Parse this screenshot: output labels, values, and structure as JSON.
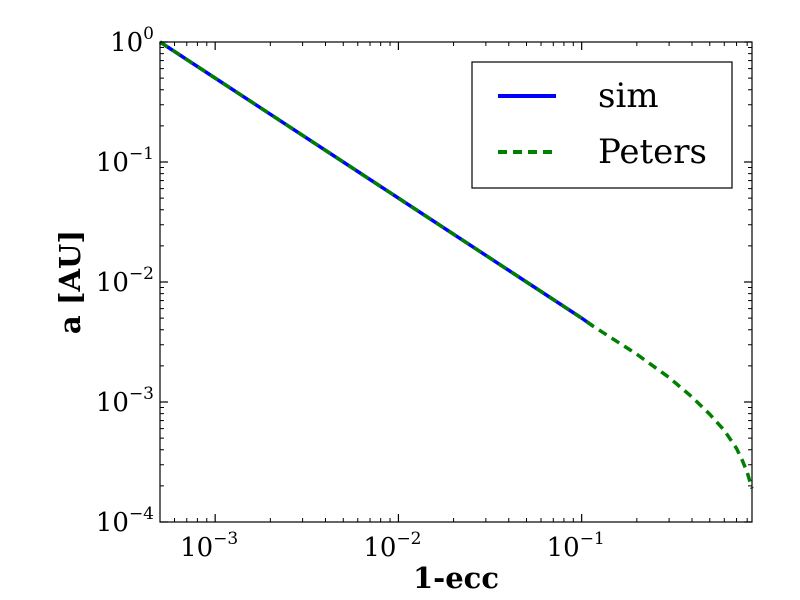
{
  "chart_data": {
    "type": "line",
    "xlabel": "1-ecc",
    "ylabel": "a [AU]",
    "xscale": "log",
    "yscale": "log",
    "xlim": [
      0.0005,
      0.85
    ],
    "ylim": [
      0.0001,
      1
    ],
    "xticks": [
      {
        "value": 0.001,
        "base": "10",
        "exp": "−3"
      },
      {
        "value": 0.01,
        "base": "10",
        "exp": "−2"
      },
      {
        "value": 0.1,
        "base": "10",
        "exp": "−1"
      }
    ],
    "yticks": [
      {
        "value": 0.0001,
        "base": "10",
        "exp": "−4"
      },
      {
        "value": 0.001,
        "base": "10",
        "exp": "−3"
      },
      {
        "value": 0.01,
        "base": "10",
        "exp": "−2"
      },
      {
        "value": 0.1,
        "base": "10",
        "exp": "−1"
      },
      {
        "value": 1,
        "base": "10",
        "exp": "0"
      }
    ],
    "grid": false,
    "legend_position": "top-right",
    "series": [
      {
        "name": "sim",
        "color": "#0000ff",
        "style": "solid",
        "x": [
          0.0005,
          0.001,
          0.005,
          0.01,
          0.05,
          0.1,
          0.115
        ],
        "y": [
          1.0,
          0.5,
          0.1,
          0.05,
          0.01,
          0.005,
          0.0043
        ]
      },
      {
        "name": "Peters",
        "color": "#008000",
        "style": "dashed",
        "x": [
          0.0005,
          0.001,
          0.01,
          0.1,
          0.115,
          0.2,
          0.3,
          0.4,
          0.5,
          0.6,
          0.7,
          0.75,
          0.8,
          0.85
        ],
        "y": [
          1.0,
          0.5,
          0.05,
          0.005,
          0.0043,
          0.0025,
          0.0016,
          0.0011,
          0.00079,
          0.00058,
          0.00041,
          0.00033,
          0.00026,
          0.00019
        ]
      }
    ]
  }
}
